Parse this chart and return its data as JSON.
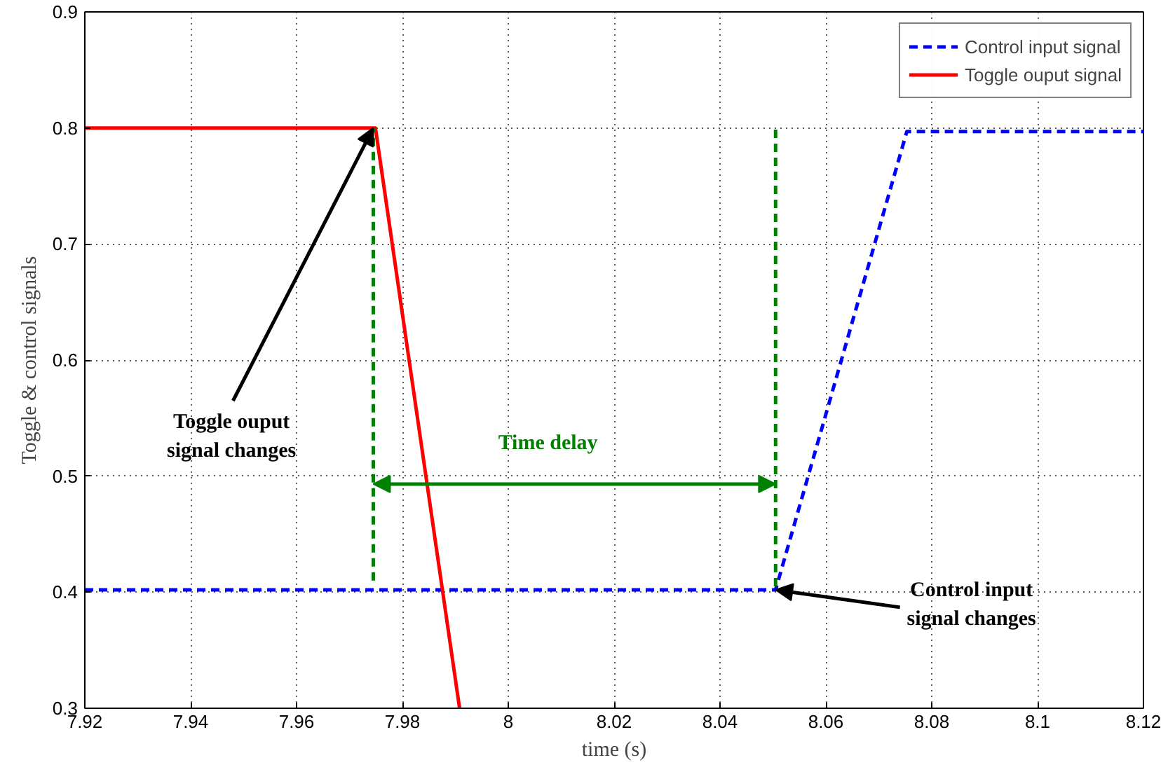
{
  "chart_data": {
    "type": "line",
    "xlabel": "time (s)",
    "ylabel": "Toggle & control signals",
    "xlim": [
      7.92,
      8.12
    ],
    "xticks": [
      7.92,
      7.94,
      7.96,
      7.98,
      8,
      8.02,
      8.04,
      8.06,
      8.08,
      8.1,
      8.12
    ],
    "ylim": [
      0.3,
      0.9
    ],
    "yticks": [
      0.3,
      0.4,
      0.5,
      0.6,
      0.7,
      0.8,
      0.9
    ],
    "grid": true,
    "legend": "top right",
    "series": [
      {
        "name": "Control input signal",
        "color": "#0000ff",
        "line_style": "dashed",
        "x": [
          7.92,
          8.0505,
          8.0753,
          8.12
        ],
        "values": [
          0.402,
          0.402,
          0.797,
          0.797
        ]
      },
      {
        "name": "Toggle ouput signal",
        "color": "#ff0000",
        "line_style": "solid",
        "x": [
          7.92,
          7.9749,
          7.9908
        ],
        "values": [
          0.8,
          0.8,
          0.3
        ]
      },
      {
        "color": "#008000",
        "line_style": "dashed",
        "x": [
          7.9745,
          7.9745
        ],
        "values": [
          0.41,
          0.8
        ]
      },
      {
        "color": "#008000",
        "line_style": "dashed",
        "x": [
          8.0505,
          8.0505
        ],
        "values": [
          0.405,
          0.8
        ]
      }
    ],
    "annotations": [
      {
        "text": "Toggle ouput\nsignal changes",
        "x": 7.9745,
        "y": 0.8
      },
      {
        "text": "Control input\nsignal changes",
        "x": 8.0505,
        "y": 0.402
      },
      "Time delay"
    ]
  }
}
